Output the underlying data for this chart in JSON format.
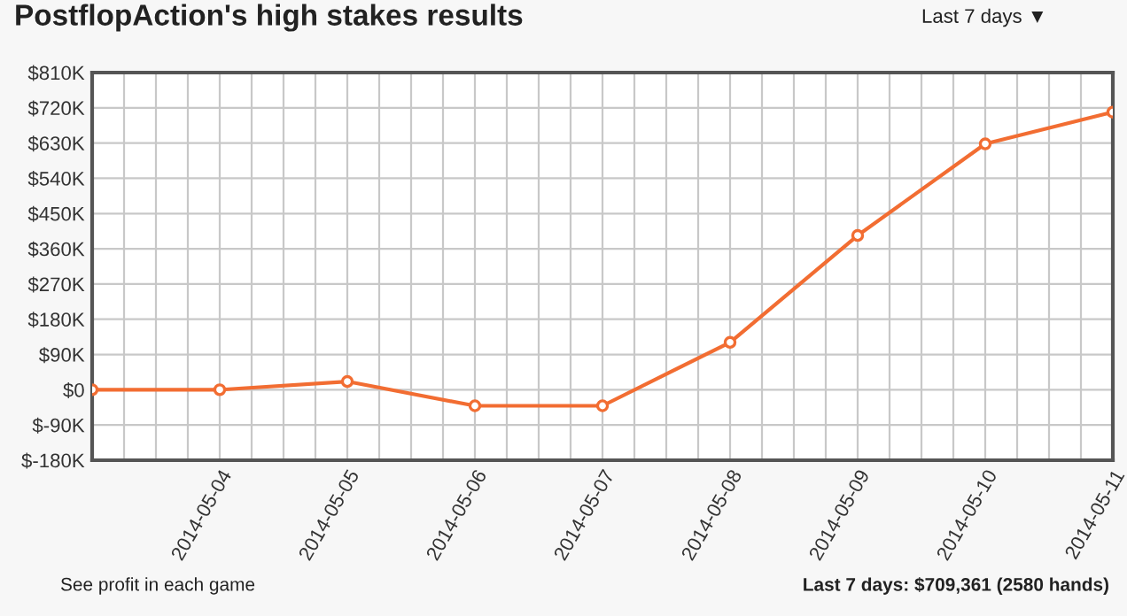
{
  "chart_data": {
    "type": "line",
    "title": "PostflopAction's high stakes results",
    "x": [
      "2014-05-03",
      "2014-05-04",
      "2014-05-05",
      "2014-05-06",
      "2014-05-07",
      "2014-05-08",
      "2014-05-09",
      "2014-05-10",
      "2014-05-11"
    ],
    "series": [
      {
        "color": "#f26d32",
        "values": [
          0,
          0,
          21,
          -41,
          -41,
          121,
          394,
          628,
          709
        ]
      }
    ],
    "xlim": [
      "2014-05-03",
      "2014-05-11"
    ],
    "xticks": [
      {
        "value": "2014-05-03T06:00",
        "label": null
      },
      {
        "value": "2014-05-03T12:00",
        "label": null
      },
      {
        "value": "2014-05-03T18:00",
        "label": null
      },
      {
        "value": "2014-05-04",
        "label": "2014-05-04"
      },
      {
        "value": "2014-05-04T06:00",
        "label": null
      },
      {
        "value": "2014-05-04T12:00",
        "label": null
      },
      {
        "value": "2014-05-04T18:00",
        "label": null
      },
      {
        "value": "2014-05-05",
        "label": "2014-05-05"
      },
      {
        "value": "2014-05-05T06:00",
        "label": null
      },
      {
        "value": "2014-05-05T12:00",
        "label": null
      },
      {
        "value": "2014-05-05T18:00",
        "label": null
      },
      {
        "value": "2014-05-06",
        "label": "2014-05-06"
      },
      {
        "value": "2014-05-06T06:00",
        "label": null
      },
      {
        "value": "2014-05-06T12:00",
        "label": null
      },
      {
        "value": "2014-05-06T18:00",
        "label": null
      },
      {
        "value": "2014-05-07",
        "label": "2014-05-07"
      },
      {
        "value": "2014-05-07T06:00",
        "label": null
      },
      {
        "value": "2014-05-07T12:00",
        "label": null
      },
      {
        "value": "2014-05-07T18:00",
        "label": null
      },
      {
        "value": "2014-05-08",
        "label": "2014-05-08"
      },
      {
        "value": "2014-05-08T06:00",
        "label": null
      },
      {
        "value": "2014-05-08T12:00",
        "label": null
      },
      {
        "value": "2014-05-08T18:00",
        "label": null
      },
      {
        "value": "2014-05-09",
        "label": "2014-05-09"
      },
      {
        "value": "2014-05-09T06:00",
        "label": null
      },
      {
        "value": "2014-05-09T12:00",
        "label": null
      },
      {
        "value": "2014-05-09T18:00",
        "label": null
      },
      {
        "value": "2014-05-10",
        "label": "2014-05-10"
      },
      {
        "value": "2014-05-10T06:00",
        "label": null
      },
      {
        "value": "2014-05-10T12:00",
        "label": null
      },
      {
        "value": "2014-05-10T18:00",
        "label": null
      },
      {
        "value": "2014-05-11",
        "label": "2014-05-11"
      }
    ],
    "ylim": [
      -180,
      810
    ],
    "yticks": [
      {
        "value": -180,
        "label": "$-180K"
      },
      {
        "value": -90,
        "label": "$-90K"
      },
      {
        "value": 0,
        "label": "$0"
      },
      {
        "value": 90,
        "label": "$90K"
      },
      {
        "value": 180,
        "label": "$180K"
      },
      {
        "value": 270,
        "label": "$270K"
      },
      {
        "value": 360,
        "label": "$360K"
      },
      {
        "value": 450,
        "label": "$450K"
      },
      {
        "value": 540,
        "label": "$540K"
      },
      {
        "value": 630,
        "label": "$630K"
      },
      {
        "value": 720,
        "label": "$720K"
      },
      {
        "value": 810,
        "label": "$810K"
      }
    ],
    "grid": true,
    "marker": "circle",
    "line_style": "solid",
    "legend": false,
    "annotations": [
      "Last 7 days ▼",
      "See profit in each game",
      "Last 7 days: $709,361 (2580 hands)"
    ]
  }
}
